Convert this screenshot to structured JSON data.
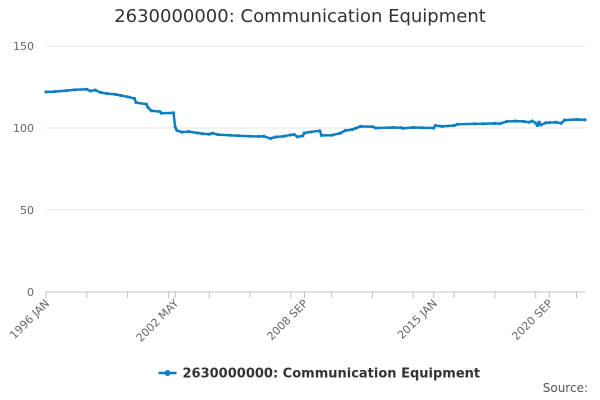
{
  "chart_data": {
    "type": "line",
    "title": "2630000000: Communication Equipment",
    "xlabel": "",
    "ylabel": "",
    "ylim": [
      0,
      150
    ],
    "yticks": [
      0,
      50,
      100,
      150
    ],
    "x_tick_labels": [
      "1996 JAN",
      "2002 MAY",
      "2008 SEP",
      "2015 JAN",
      "2020 SEP"
    ],
    "grid": true,
    "legend_position": "bottom-center",
    "source_text": "Source:",
    "colors": {
      "series": "#0d7fbf",
      "grid": "#e6e6e6",
      "axis": "#c0c0c0",
      "text": "#333333"
    },
    "series": [
      {
        "name": "2630000000: Communication Equipment",
        "points": [
          [
            "1996-01",
            122.0
          ],
          [
            "1996-06",
            122.2
          ],
          [
            "1997-01",
            122.8
          ],
          [
            "1997-06",
            123.3
          ],
          [
            "1998-01",
            123.6
          ],
          [
            "1998-03",
            122.6
          ],
          [
            "1998-06",
            123.1
          ],
          [
            "1998-09",
            121.7
          ],
          [
            "1999-01",
            121.0
          ],
          [
            "1999-06",
            120.5
          ],
          [
            "1999-09",
            119.8
          ],
          [
            "2000-01",
            119.0
          ],
          [
            "2000-05",
            118.0
          ],
          [
            "2000-06",
            115.5
          ],
          [
            "2000-12",
            114.5
          ],
          [
            "2001-01",
            112.5
          ],
          [
            "2001-03",
            110.5
          ],
          [
            "2001-08",
            110.0
          ],
          [
            "2001-09",
            109.0
          ],
          [
            "2002-04",
            109.2
          ],
          [
            "2002-05",
            100.5
          ],
          [
            "2002-06",
            98.5
          ],
          [
            "2002-09",
            97.5
          ],
          [
            "2003-01",
            97.8
          ],
          [
            "2003-06",
            97.0
          ],
          [
            "2003-09",
            96.5
          ],
          [
            "2004-01",
            96.2
          ],
          [
            "2004-03",
            96.8
          ],
          [
            "2004-06",
            96.0
          ],
          [
            "2005-01",
            95.6
          ],
          [
            "2005-06",
            95.3
          ],
          [
            "2006-01",
            95.0
          ],
          [
            "2006-06",
            94.8
          ],
          [
            "2006-09",
            95.0
          ],
          [
            "2007-01",
            93.6
          ],
          [
            "2007-04",
            94.5
          ],
          [
            "2007-09",
            95.0
          ],
          [
            "2008-01",
            95.8
          ],
          [
            "2008-03",
            96.0
          ],
          [
            "2008-05",
            94.6
          ],
          [
            "2008-08",
            95.2
          ],
          [
            "2008-09",
            97.0
          ],
          [
            "2009-01",
            97.6
          ],
          [
            "2009-06",
            98.3
          ],
          [
            "2009-07",
            95.5
          ],
          [
            "2010-01",
            95.6
          ],
          [
            "2010-06",
            96.8
          ],
          [
            "2010-09",
            98.5
          ],
          [
            "2011-01",
            99.0
          ],
          [
            "2011-03",
            99.8
          ],
          [
            "2011-06",
            101.0
          ],
          [
            "2012-01",
            100.8
          ],
          [
            "2012-03",
            100.0
          ],
          [
            "2013-01",
            100.3
          ],
          [
            "2013-06",
            100.2
          ],
          [
            "2013-07",
            99.8
          ],
          [
            "2014-01",
            100.3
          ],
          [
            "2014-06",
            100.2
          ],
          [
            "2015-01",
            100.0
          ],
          [
            "2015-02",
            101.5
          ],
          [
            "2015-06",
            101.0
          ],
          [
            "2016-01",
            101.5
          ],
          [
            "2016-03",
            102.3
          ],
          [
            "2017-01",
            102.5
          ],
          [
            "2017-06",
            102.6
          ],
          [
            "2018-01",
            102.8
          ],
          [
            "2018-04",
            102.6
          ],
          [
            "2018-08",
            104.0
          ],
          [
            "2019-01",
            104.2
          ],
          [
            "2019-06",
            104.0
          ],
          [
            "2019-09",
            103.5
          ],
          [
            "2019-11",
            104.2
          ],
          [
            "2020-01",
            103.0
          ],
          [
            "2020-02",
            101.5
          ],
          [
            "2020-03",
            103.6
          ],
          [
            "2020-04",
            101.8
          ],
          [
            "2020-07",
            103.2
          ],
          [
            "2020-09",
            103.3
          ],
          [
            "2021-01",
            103.5
          ],
          [
            "2021-04",
            102.9
          ],
          [
            "2021-06",
            104.8
          ],
          [
            "2022-01",
            105.2
          ],
          [
            "2022-06",
            105.0
          ]
        ]
      }
    ]
  }
}
